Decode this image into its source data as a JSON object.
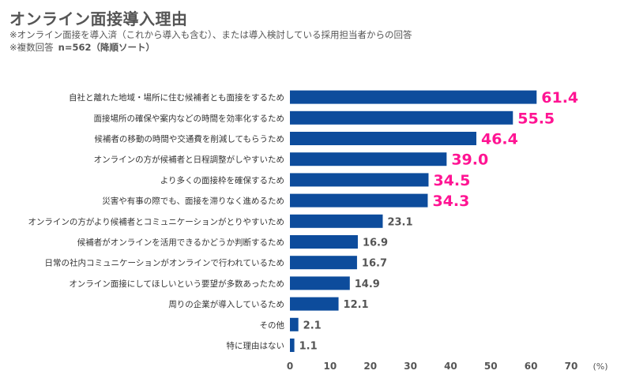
{
  "header": {
    "title": "オンライン面接導入理由",
    "note1": "※オンライン面接を導入済（これから導入も含む）、または導入検討している採用担当者からの回答",
    "note2_label": "※複数回答",
    "note2_n": "n=562（降順ソート）"
  },
  "colors": {
    "bar": "#0d4c9c",
    "highlight_label": "#ff1493",
    "normal_label": "#555555"
  },
  "chart_data": {
    "type": "bar",
    "orientation": "horizontal",
    "categories": [
      "自社と離れた地域・場所に住む候補者とも面接をするため",
      "面接場所の確保や案内などの時間を効率化するため",
      "候補者の移動の時間や交通費を削減してもらうため",
      "オンラインの方が候補者と日程調整がしやすいため",
      "より多くの面接枠を確保するため",
      "災害や有事の際でも、面接を滞りなく進めるため",
      "オンラインの方がより候補者とコミュニケーションがとりやすいため",
      "候補者がオンラインを活用できるかどうか判断するため",
      "日常の社内コミュニケーションがオンラインで行われているため",
      "オンライン面接にしてほしいという要望が多数あったため",
      "周りの企業が導入しているため",
      "その他",
      "特に理由はない"
    ],
    "values": [
      61.4,
      55.5,
      46.4,
      39.0,
      34.5,
      34.3,
      23.1,
      16.9,
      16.7,
      14.9,
      12.1,
      2.1,
      1.1
    ],
    "value_labels": [
      "61.4",
      "55.5",
      "46.4",
      "39.0",
      "34.5",
      "34.3",
      "23.1",
      "16.9",
      "16.7",
      "14.9",
      "12.1",
      "2.1",
      "1.1"
    ],
    "highlight_count": 6,
    "xlim": [
      0,
      70
    ],
    "xticks": [
      "0",
      "10",
      "20",
      "30",
      "40",
      "50",
      "60",
      "70"
    ],
    "xunit": "(%)",
    "grid": false
  }
}
